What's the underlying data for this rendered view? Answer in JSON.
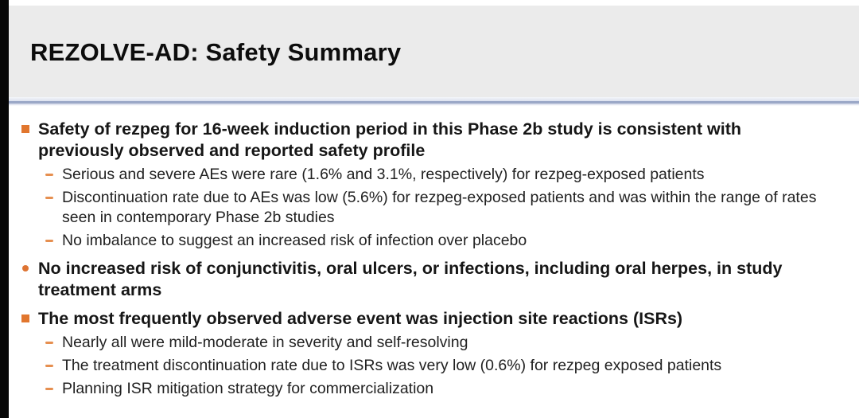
{
  "slide": {
    "title": "REZOLVE-AD: Safety Summary",
    "colors": {
      "accent_orange": "#e1762e",
      "dash_orange": "#e68f50",
      "header_background": "#ebebeb",
      "divider_blue": "#9ba8c7",
      "edge_bar_black": "#060606",
      "body_background": "#ffffff",
      "text_black": "#161616"
    },
    "bullets": [
      {
        "level": 1,
        "marker": "square",
        "text": "Safety of rezpeg for 16-week induction period in this Phase 2b study is consistent with previously observed and reported safety profile"
      },
      {
        "level": 2,
        "marker": "dash",
        "text": "Serious and severe AEs were rare (1.6% and 3.1%, respectively) for rezpeg-exposed patients"
      },
      {
        "level": 2,
        "marker": "dash",
        "text": "Discontinuation rate due to AEs was low (5.6%) for rezpeg-exposed patients and was within the range of rates seen in contemporary Phase 2b studies"
      },
      {
        "level": 2,
        "marker": "dash",
        "text": "No imbalance to suggest an increased risk of infection over placebo"
      },
      {
        "level": 1,
        "marker": "circle",
        "text": "No increased risk of conjunctivitis, oral ulcers, or infections, including oral herpes, in study treatment arms"
      },
      {
        "level": 1,
        "marker": "square",
        "text": "The most frequently observed adverse event was injection site reactions (ISRs)"
      },
      {
        "level": 2,
        "marker": "dash",
        "text": "Nearly all were mild-moderate in severity and self-resolving"
      },
      {
        "level": 2,
        "marker": "dash",
        "text": "The treatment discontinuation rate due to ISRs was very low (0.6%) for rezpeg exposed patients"
      },
      {
        "level": 2,
        "marker": "dash",
        "text": "Planning ISR mitigation strategy for commercialization"
      }
    ]
  }
}
